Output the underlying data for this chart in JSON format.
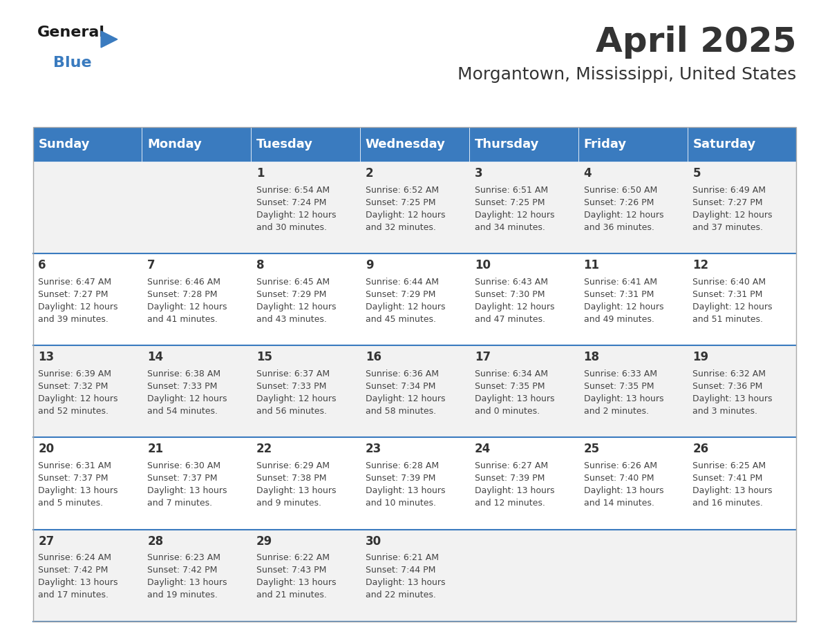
{
  "title": "April 2025",
  "subtitle": "Morgantown, Mississippi, United States",
  "header_bg": "#3a7bbf",
  "header_text": "#ffffff",
  "row_bg_odd": "#f2f2f2",
  "row_bg_even": "#ffffff",
  "border_color": "#3a7bbf",
  "days_of_week": [
    "Sunday",
    "Monday",
    "Tuesday",
    "Wednesday",
    "Thursday",
    "Friday",
    "Saturday"
  ],
  "weeks": [
    [
      {
        "day": "",
        "info": ""
      },
      {
        "day": "",
        "info": ""
      },
      {
        "day": "1",
        "info": "Sunrise: 6:54 AM\nSunset: 7:24 PM\nDaylight: 12 hours\nand 30 minutes."
      },
      {
        "day": "2",
        "info": "Sunrise: 6:52 AM\nSunset: 7:25 PM\nDaylight: 12 hours\nand 32 minutes."
      },
      {
        "day": "3",
        "info": "Sunrise: 6:51 AM\nSunset: 7:25 PM\nDaylight: 12 hours\nand 34 minutes."
      },
      {
        "day": "4",
        "info": "Sunrise: 6:50 AM\nSunset: 7:26 PM\nDaylight: 12 hours\nand 36 minutes."
      },
      {
        "day": "5",
        "info": "Sunrise: 6:49 AM\nSunset: 7:27 PM\nDaylight: 12 hours\nand 37 minutes."
      }
    ],
    [
      {
        "day": "6",
        "info": "Sunrise: 6:47 AM\nSunset: 7:27 PM\nDaylight: 12 hours\nand 39 minutes."
      },
      {
        "day": "7",
        "info": "Sunrise: 6:46 AM\nSunset: 7:28 PM\nDaylight: 12 hours\nand 41 minutes."
      },
      {
        "day": "8",
        "info": "Sunrise: 6:45 AM\nSunset: 7:29 PM\nDaylight: 12 hours\nand 43 minutes."
      },
      {
        "day": "9",
        "info": "Sunrise: 6:44 AM\nSunset: 7:29 PM\nDaylight: 12 hours\nand 45 minutes."
      },
      {
        "day": "10",
        "info": "Sunrise: 6:43 AM\nSunset: 7:30 PM\nDaylight: 12 hours\nand 47 minutes."
      },
      {
        "day": "11",
        "info": "Sunrise: 6:41 AM\nSunset: 7:31 PM\nDaylight: 12 hours\nand 49 minutes."
      },
      {
        "day": "12",
        "info": "Sunrise: 6:40 AM\nSunset: 7:31 PM\nDaylight: 12 hours\nand 51 minutes."
      }
    ],
    [
      {
        "day": "13",
        "info": "Sunrise: 6:39 AM\nSunset: 7:32 PM\nDaylight: 12 hours\nand 52 minutes."
      },
      {
        "day": "14",
        "info": "Sunrise: 6:38 AM\nSunset: 7:33 PM\nDaylight: 12 hours\nand 54 minutes."
      },
      {
        "day": "15",
        "info": "Sunrise: 6:37 AM\nSunset: 7:33 PM\nDaylight: 12 hours\nand 56 minutes."
      },
      {
        "day": "16",
        "info": "Sunrise: 6:36 AM\nSunset: 7:34 PM\nDaylight: 12 hours\nand 58 minutes."
      },
      {
        "day": "17",
        "info": "Sunrise: 6:34 AM\nSunset: 7:35 PM\nDaylight: 13 hours\nand 0 minutes."
      },
      {
        "day": "18",
        "info": "Sunrise: 6:33 AM\nSunset: 7:35 PM\nDaylight: 13 hours\nand 2 minutes."
      },
      {
        "day": "19",
        "info": "Sunrise: 6:32 AM\nSunset: 7:36 PM\nDaylight: 13 hours\nand 3 minutes."
      }
    ],
    [
      {
        "day": "20",
        "info": "Sunrise: 6:31 AM\nSunset: 7:37 PM\nDaylight: 13 hours\nand 5 minutes."
      },
      {
        "day": "21",
        "info": "Sunrise: 6:30 AM\nSunset: 7:37 PM\nDaylight: 13 hours\nand 7 minutes."
      },
      {
        "day": "22",
        "info": "Sunrise: 6:29 AM\nSunset: 7:38 PM\nDaylight: 13 hours\nand 9 minutes."
      },
      {
        "day": "23",
        "info": "Sunrise: 6:28 AM\nSunset: 7:39 PM\nDaylight: 13 hours\nand 10 minutes."
      },
      {
        "day": "24",
        "info": "Sunrise: 6:27 AM\nSunset: 7:39 PM\nDaylight: 13 hours\nand 12 minutes."
      },
      {
        "day": "25",
        "info": "Sunrise: 6:26 AM\nSunset: 7:40 PM\nDaylight: 13 hours\nand 14 minutes."
      },
      {
        "day": "26",
        "info": "Sunrise: 6:25 AM\nSunset: 7:41 PM\nDaylight: 13 hours\nand 16 minutes."
      }
    ],
    [
      {
        "day": "27",
        "info": "Sunrise: 6:24 AM\nSunset: 7:42 PM\nDaylight: 13 hours\nand 17 minutes."
      },
      {
        "day": "28",
        "info": "Sunrise: 6:23 AM\nSunset: 7:42 PM\nDaylight: 13 hours\nand 19 minutes."
      },
      {
        "day": "29",
        "info": "Sunrise: 6:22 AM\nSunset: 7:43 PM\nDaylight: 13 hours\nand 21 minutes."
      },
      {
        "day": "30",
        "info": "Sunrise: 6:21 AM\nSunset: 7:44 PM\nDaylight: 13 hours\nand 22 minutes."
      },
      {
        "day": "",
        "info": ""
      },
      {
        "day": "",
        "info": ""
      },
      {
        "day": "",
        "info": ""
      }
    ]
  ],
  "logo_text_general": "General",
  "logo_text_blue": "Blue",
  "logo_triangle_color": "#3a7bbf",
  "title_fontsize": 36,
  "subtitle_fontsize": 18,
  "header_fontsize": 13,
  "day_num_fontsize": 12,
  "info_fontsize": 9,
  "text_color_dark": "#333333",
  "text_color_info": "#444444"
}
